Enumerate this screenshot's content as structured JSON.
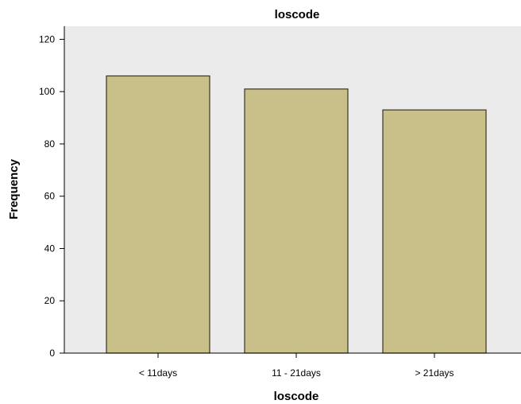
{
  "chart_data": {
    "type": "bar",
    "title": "loscode",
    "xlabel": "loscode",
    "ylabel": "Frequency",
    "categories": [
      "< 11days",
      "11 - 21days",
      "> 21days"
    ],
    "values": [
      106,
      101,
      93
    ],
    "ylim": [
      0,
      125
    ],
    "yticks": [
      0,
      20,
      40,
      60,
      80,
      100,
      120
    ],
    "grid": false,
    "colors": {
      "bar_fill": "#c8c088",
      "bar_stroke": "#3a3520",
      "plot_background": "#ebebeb"
    }
  }
}
